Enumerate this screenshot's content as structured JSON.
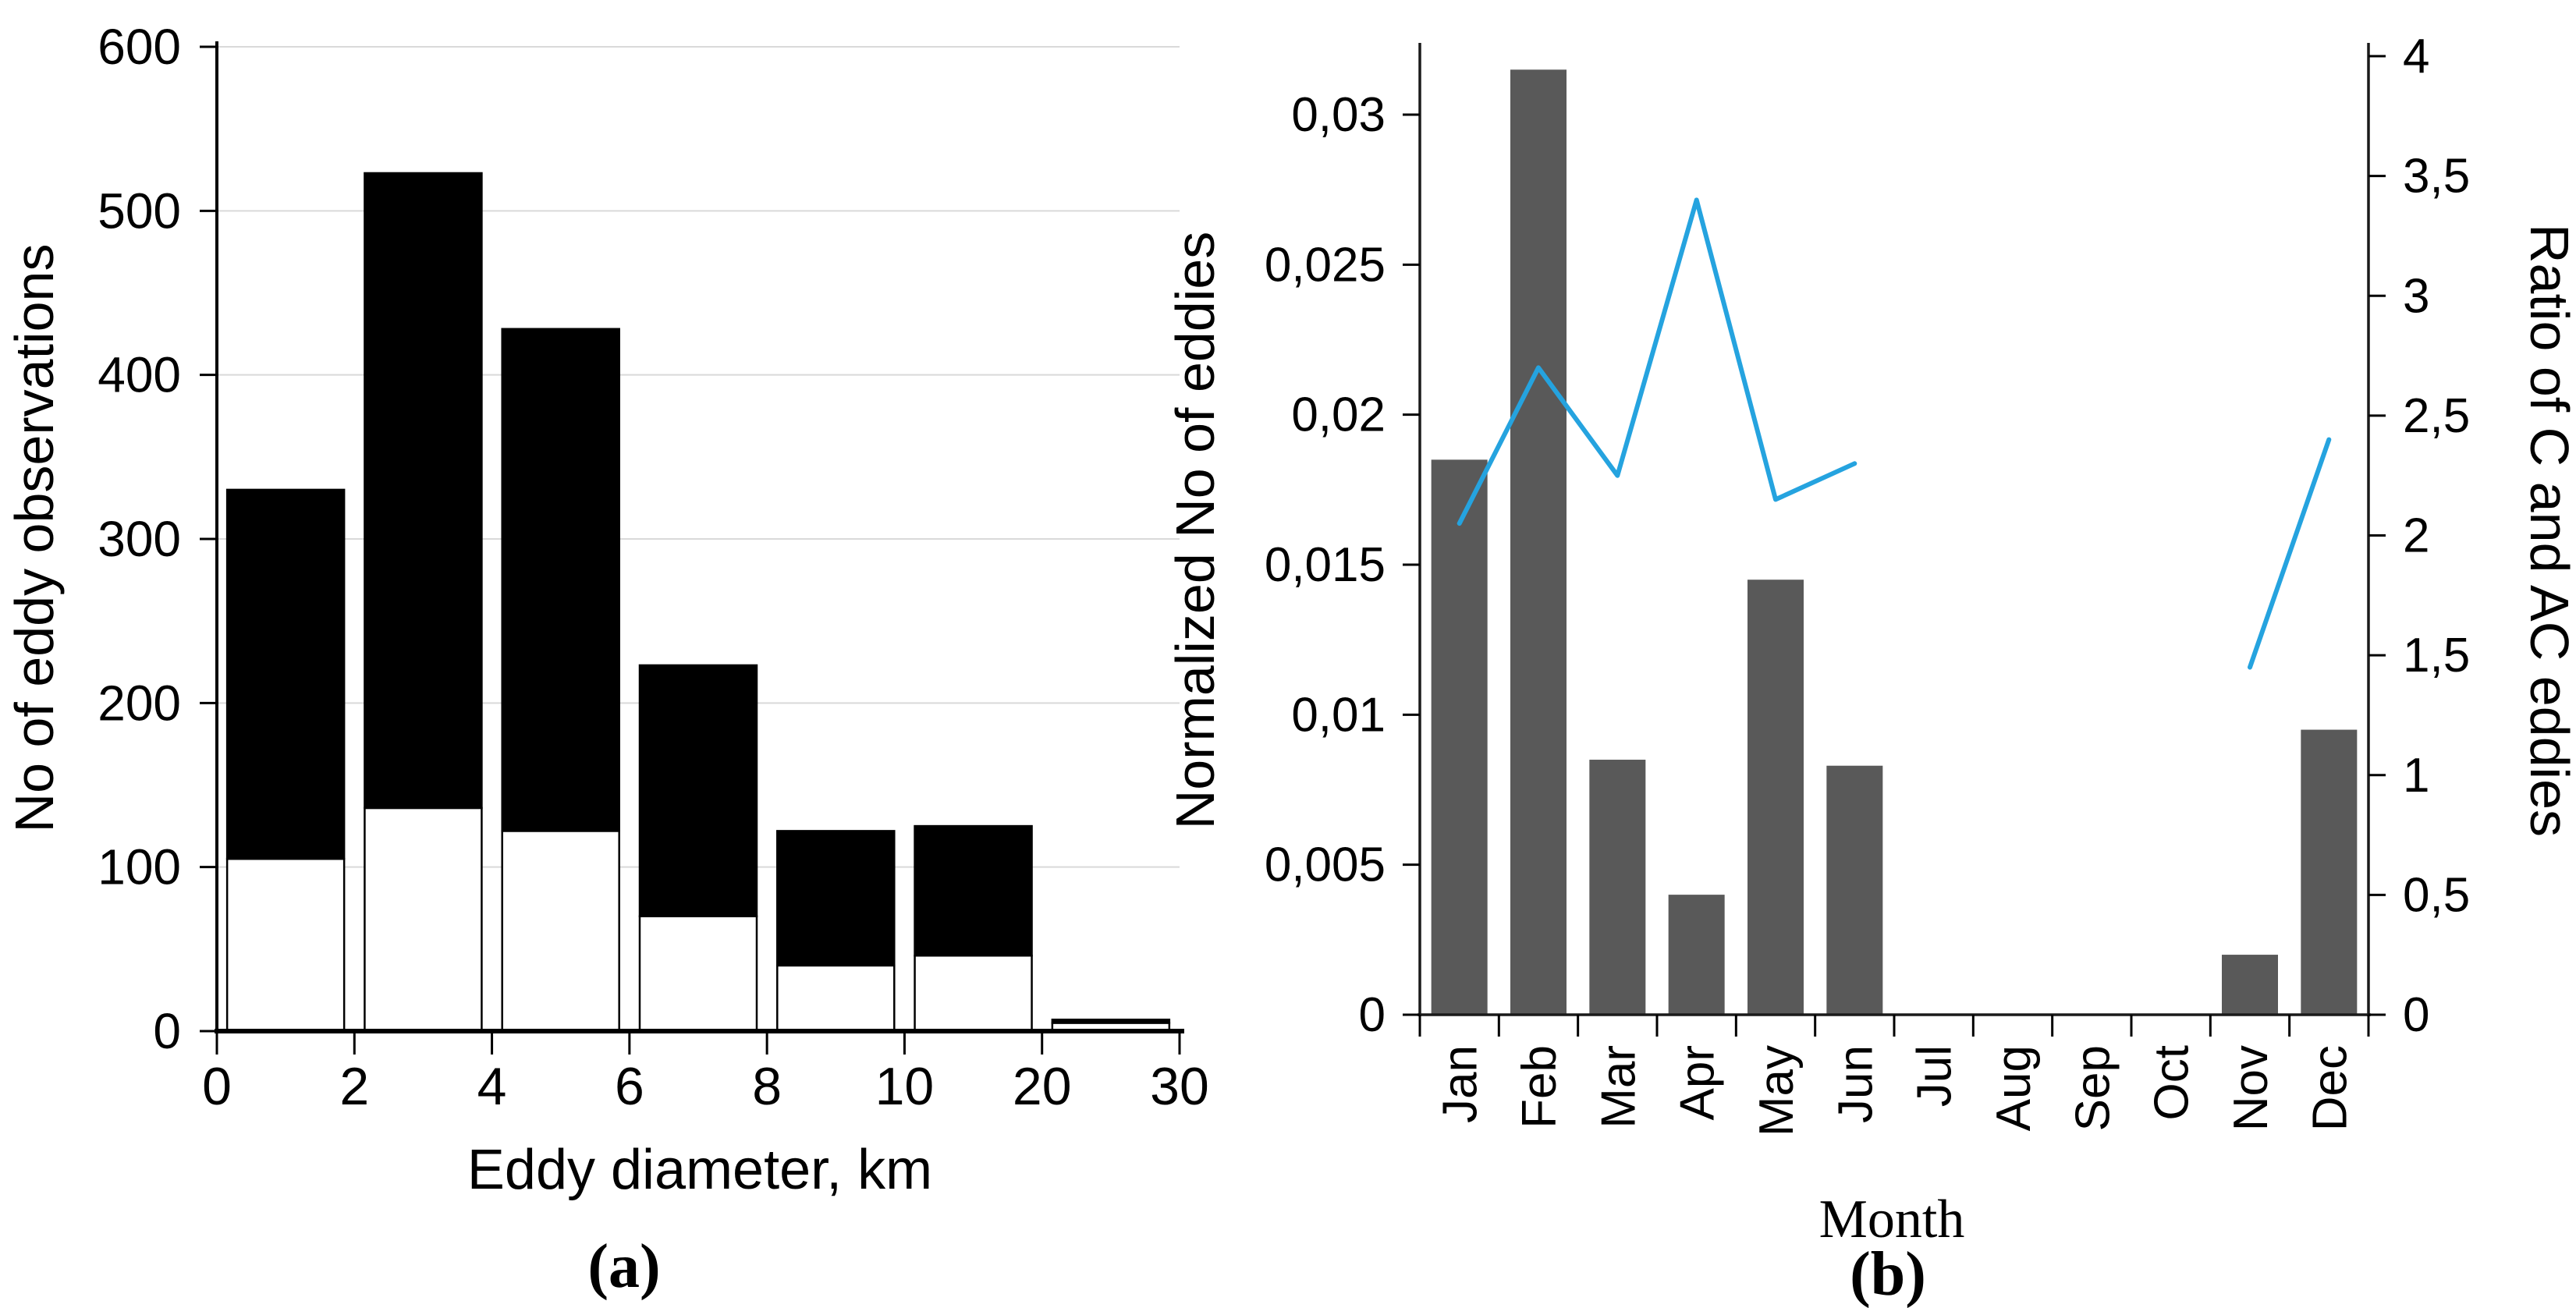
{
  "figure": {
    "background": "#ffffff",
    "panel_a": {
      "caption": "(a)",
      "xlabel": "Eddy diameter, km",
      "ylabel": "No of eddy observations"
    },
    "panel_b": {
      "caption": "(b)",
      "xlabel": "Month",
      "ylabel_left": "Normalized No of eddies",
      "ylabel_right": "Ratio of C and AC eddies"
    }
  },
  "chart_data": [
    {
      "id": "a",
      "type": "bar",
      "subtype": "stacked-histogram",
      "title": "",
      "xlabel": "Eddy diameter, km",
      "ylabel": "No of eddy observations",
      "caption": "(a)",
      "categories": [
        "0-2",
        "2-4",
        "4-6",
        "6-8",
        "8-10",
        "10-20",
        "20-30"
      ],
      "x_tick_labels": [
        "0",
        "2",
        "4",
        "6",
        "8",
        "10",
        "20",
        "30"
      ],
      "series": [
        {
          "name": "lower-segment-white",
          "color": "#ffffff",
          "values": [
            105,
            136,
            122,
            70,
            40,
            46,
            5
          ]
        },
        {
          "name": "upper-segment-black",
          "color": "#000000",
          "values": [
            225,
            387,
            306,
            153,
            82,
            79,
            2
          ]
        }
      ],
      "stacked_totals": [
        330,
        523,
        428,
        223,
        122,
        125,
        7
      ],
      "ylim": [
        0,
        600
      ],
      "yticks": [
        0,
        100,
        200,
        300,
        400,
        500,
        600
      ],
      "grid": "horizontal",
      "gridline_color": "#d9d9d9",
      "legend": "none"
    },
    {
      "id": "b",
      "type": "bar+line",
      "title": "",
      "xlabel": "Month",
      "ylabel_left": "Normalized No of eddies",
      "ylabel_right": "Ratio of C and AC eddies",
      "caption": "(b)",
      "categories": [
        "Jan",
        "Feb",
        "Mar",
        "Apr",
        "May",
        "Jun",
        "Jul",
        "Aug",
        "Sep",
        "Oct",
        "Nov",
        "Dec"
      ],
      "bar_series": {
        "name": "Normalized No of eddies",
        "axis": "left",
        "color": "#595959",
        "values": [
          0.0185,
          0.0315,
          0.0085,
          0.004,
          0.0145,
          0.0083,
          0,
          0,
          0,
          0,
          0.002,
          0.0095
        ]
      },
      "line_series": {
        "name": "Ratio of C and AC eddies",
        "axis": "right",
        "color": "#25A3DF",
        "values": [
          2.05,
          2.7,
          2.25,
          3.4,
          2.15,
          2.3,
          null,
          null,
          null,
          null,
          1.45,
          2.4
        ]
      },
      "ylim_left": [
        0,
        0.03
      ],
      "ytick_values_left": [
        0,
        0.005,
        0.01,
        0.015,
        0.02,
        0.025,
        0.03
      ],
      "ytick_labels_left": [
        "0",
        "0,005",
        "0,01",
        "0,015",
        "0,02",
        "0,025",
        "0,03"
      ],
      "ylim_right": [
        0,
        4
      ],
      "ytick_values_right": [
        0,
        0.5,
        1,
        1.5,
        2,
        2.5,
        3,
        3.5,
        4
      ],
      "ytick_labels_right": [
        "0",
        "0,5",
        "1",
        "1,5",
        "2",
        "2,5",
        "3",
        "3,5",
        "4"
      ],
      "grid": "none",
      "legend": "none"
    }
  ]
}
